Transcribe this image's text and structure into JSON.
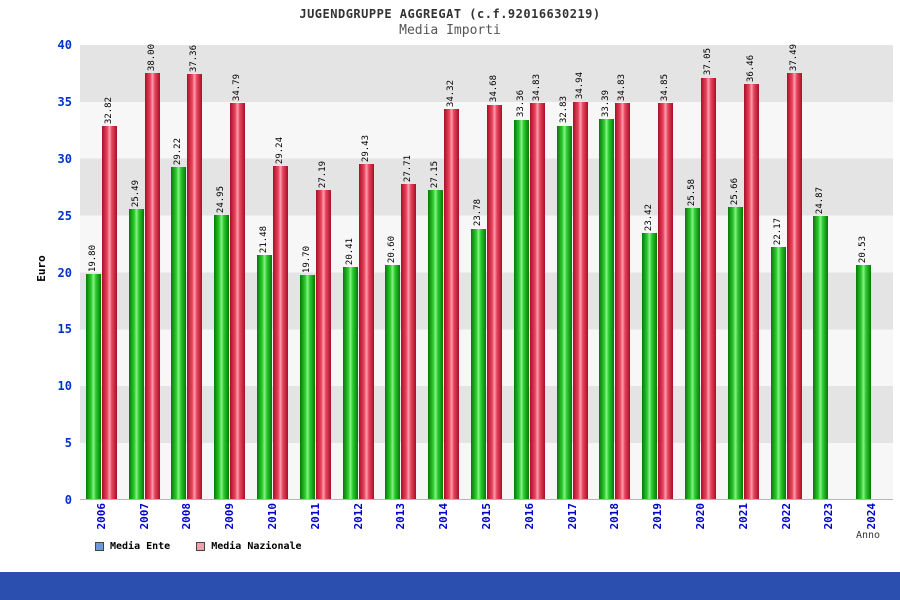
{
  "header": {
    "title": "JUGENDGRUPPE AGGREGAT (c.f.92016630219)",
    "subtitle": "Media Importi"
  },
  "colors": {
    "bar_media_ente": "#2ecc2e",
    "bar_media_nazionale": "#e8465e",
    "legend_swatch_media_ente": "#6b9bd2",
    "legend_swatch_media_nazionale": "#f2a0ae",
    "axis_text": "#0033cc",
    "footer_band": "#2a4fae"
  },
  "chart_data": {
    "type": "bar",
    "title": "JUGENDGRUPPE AGGREGAT (c.f.92016630219)",
    "subtitle": "Media Importi",
    "xlabel": "Anno",
    "ylabel": "Euro",
    "ylim": [
      0,
      40
    ],
    "ytick_step": 5,
    "grid": "horizontal-bands",
    "legend_position": "bottom-left",
    "categories": [
      "2006",
      "2007",
      "2008",
      "2009",
      "2010",
      "2011",
      "2012",
      "2013",
      "2014",
      "2015",
      "2016",
      "2017",
      "2018",
      "2019",
      "2020",
      "2021",
      "2022",
      "2023",
      "2024"
    ],
    "series": [
      {
        "name": "Media Ente",
        "color": "#2ecc2e",
        "values": [
          19.8,
          25.49,
          29.22,
          24.95,
          21.48,
          19.7,
          20.41,
          20.6,
          27.15,
          23.78,
          33.36,
          32.83,
          33.39,
          23.42,
          25.58,
          25.66,
          22.17,
          24.87,
          20.53
        ]
      },
      {
        "name": "Media Nazionale",
        "color": "#e8465e",
        "values": [
          32.82,
          38.0,
          37.36,
          34.79,
          29.24,
          27.19,
          29.43,
          27.71,
          34.32,
          34.68,
          34.83,
          34.94,
          34.83,
          34.85,
          37.05,
          36.46,
          37.49,
          null,
          null
        ]
      }
    ],
    "legend": [
      {
        "label": "Media Ente",
        "swatch": "#6b9bd2"
      },
      {
        "label": "Media Nazionale",
        "swatch": "#f2a0ae"
      }
    ]
  }
}
